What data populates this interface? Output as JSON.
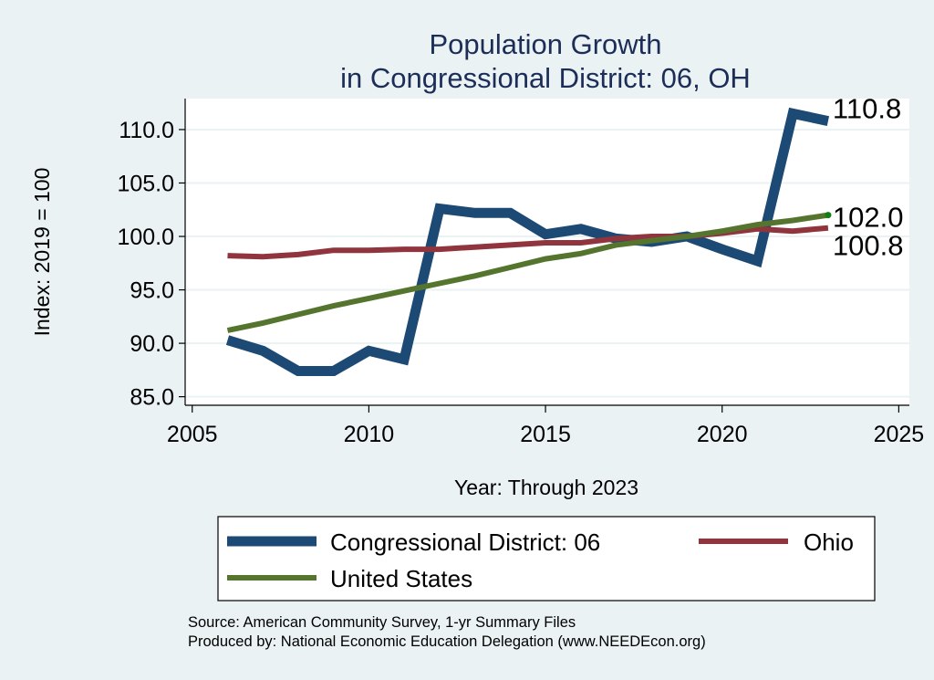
{
  "chart_data": {
    "type": "line",
    "title": [
      "Population Growth",
      "in Congressional District: 06, OH"
    ],
    "xlabel": "Year: Through 2023",
    "ylabel": "Index: 2019 = 100",
    "xlim": [
      2004.8,
      2025.3
    ],
    "ylim": [
      84.2,
      112.9
    ],
    "xticks": [
      2005,
      2010,
      2015,
      2020,
      2025
    ],
    "xtick_labels": [
      "2005",
      "2010",
      "2015",
      "2020",
      "2025"
    ],
    "yticks": [
      85,
      90,
      95,
      100,
      105,
      110
    ],
    "ytick_labels": [
      "85.0",
      "90.0",
      "95.0",
      "100.0",
      "105.0",
      "110.0"
    ],
    "grid": true,
    "x": [
      2006,
      2007,
      2008,
      2009,
      2010,
      2011,
      2012,
      2013,
      2014,
      2015,
      2016,
      2017,
      2018,
      2019,
      2020,
      2021,
      2022,
      2023
    ],
    "series": [
      {
        "name": "Congressional District: 06",
        "color": "#1c4a74",
        "values": [
          90.3,
          89.3,
          87.4,
          87.4,
          89.3,
          88.5,
          102.6,
          102.2,
          102.2,
          100.2,
          100.7,
          99.8,
          99.5,
          100.0,
          98.8,
          97.7,
          111.5,
          110.8
        ],
        "end_label": "110.8"
      },
      {
        "name": "Ohio",
        "color": "#90353d",
        "values": [
          98.2,
          98.1,
          98.3,
          98.7,
          98.7,
          98.8,
          98.8,
          99.0,
          99.2,
          99.4,
          99.4,
          99.8,
          100.0,
          100.0,
          100.3,
          100.7,
          100.5,
          100.8
        ],
        "end_label": "100.8"
      },
      {
        "name": "United States",
        "color": "#55752f",
        "values": [
          91.2,
          91.9,
          92.7,
          93.5,
          94.2,
          94.9,
          95.6,
          96.3,
          97.1,
          97.9,
          98.4,
          99.2,
          99.6,
          100.0,
          100.5,
          101.1,
          101.5,
          102.0
        ],
        "end_label": "102.0"
      }
    ],
    "legend": {
      "placement": "bottom",
      "entries": [
        "Congressional District: 06",
        "Ohio",
        "United States"
      ]
    },
    "notes": [
      "Source: American Community Survey, 1-yr Summary Files",
      "Produced by: National Economic Education Delegation (www.NEEDEcon.org)"
    ]
  }
}
